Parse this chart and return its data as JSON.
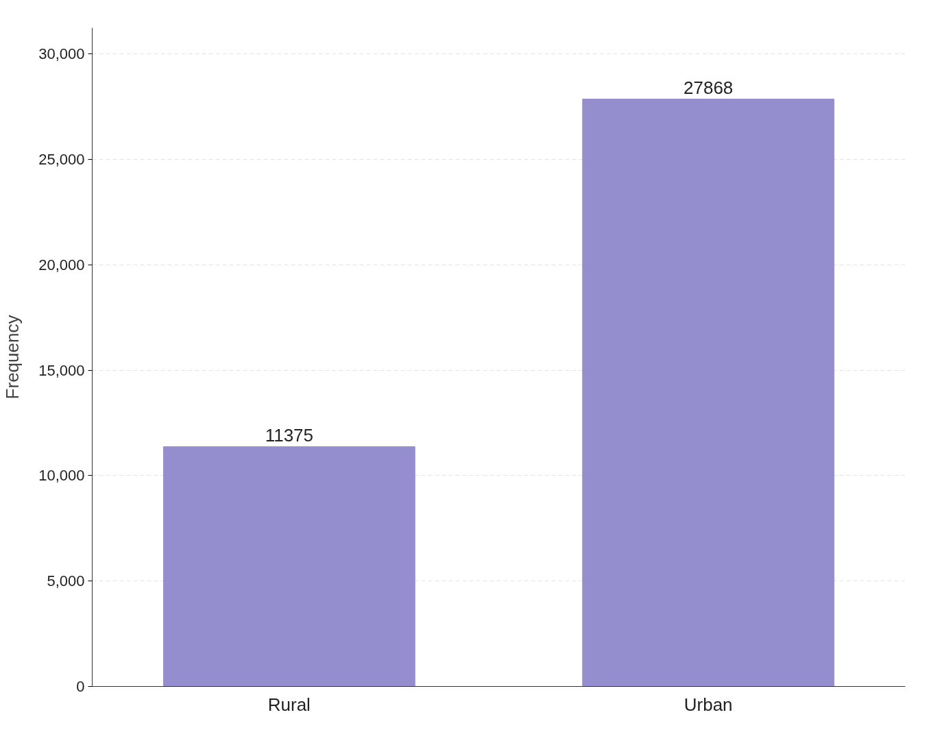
{
  "chart_data": {
    "type": "bar",
    "ylabel": "Frequency",
    "categories": [
      "Rural",
      "Urban"
    ],
    "values": [
      11375,
      27868
    ],
    "color": "#948ecf",
    "data_labels": true,
    "grid": "y",
    "ylim": [
      0,
      31250
    ],
    "yticks": [
      {
        "value": 0,
        "label": "0"
      },
      {
        "value": 5000,
        "label": "5,000"
      },
      {
        "value": 10000,
        "label": "10,000"
      },
      {
        "value": 15000,
        "label": "15,000"
      },
      {
        "value": 20000,
        "label": "20,000"
      },
      {
        "value": 25000,
        "label": "25,000"
      },
      {
        "value": 30000,
        "label": "30,000"
      }
    ]
  }
}
